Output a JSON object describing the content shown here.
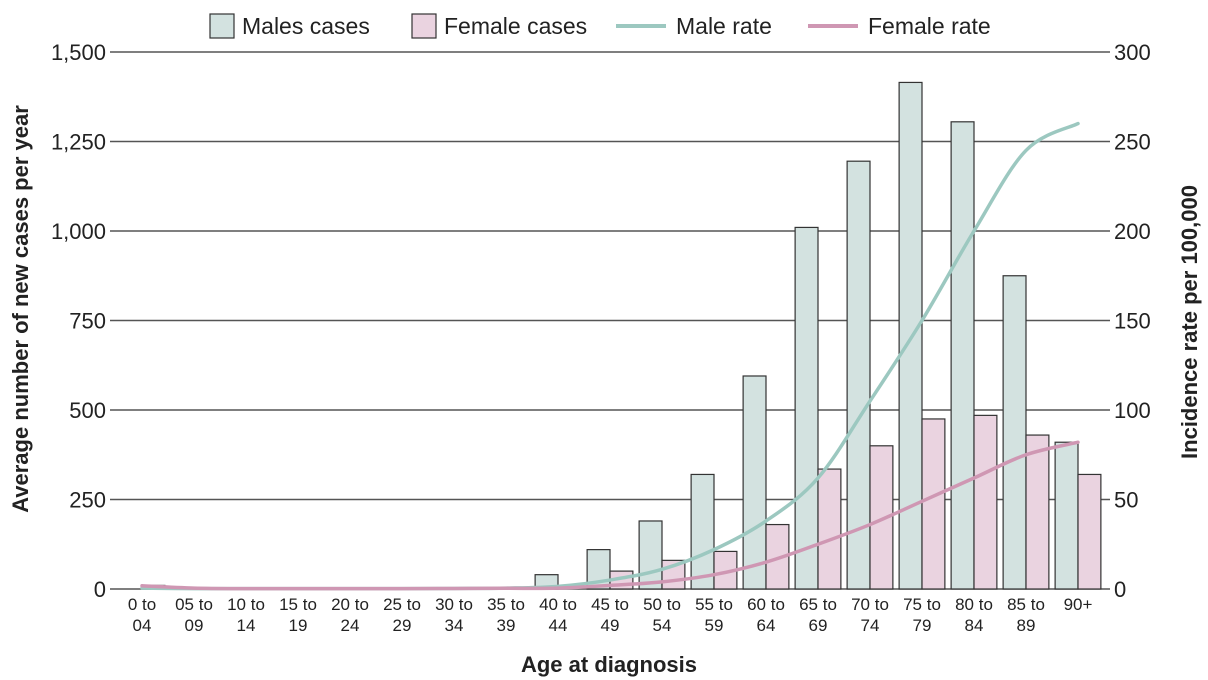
{
  "chart_data": {
    "type": "bar",
    "title": "",
    "xlabel": "Age at diagnosis",
    "ylabel": "Average number of new cases per year",
    "y2label": "Incidence rate per 100,000",
    "ylim": [
      0,
      1500
    ],
    "y2lim": [
      0,
      300
    ],
    "yticks": [
      "0",
      "250",
      "500",
      "750",
      "1,000",
      "1,250",
      "1,500"
    ],
    "y2ticks": [
      "0",
      "50",
      "100",
      "150",
      "200",
      "250",
      "300"
    ],
    "grid": true,
    "legend_position": "top",
    "categories": [
      [
        "0 to",
        "04"
      ],
      [
        "05 to",
        "09"
      ],
      [
        "10 to",
        "14"
      ],
      [
        "15 to",
        "19"
      ],
      [
        "20 to",
        "24"
      ],
      [
        "25 to",
        "29"
      ],
      [
        "30 to",
        "34"
      ],
      [
        "35 to",
        "39"
      ],
      [
        "40 to",
        "44"
      ],
      [
        "45 to",
        "49"
      ],
      [
        "50 to",
        "54"
      ],
      [
        "55 to",
        "59"
      ],
      [
        "60 to",
        "64"
      ],
      [
        "65 to",
        "69"
      ],
      [
        "70 to",
        "74"
      ],
      [
        "75 to",
        "79"
      ],
      [
        "80 to",
        "84"
      ],
      [
        "85 to",
        "89"
      ],
      [
        "90+",
        ""
      ]
    ],
    "series": [
      {
        "name": "Males cases",
        "kind": "bar",
        "axis": "left",
        "color": "#d3e2e0",
        "values": [
          0,
          0,
          0,
          0,
          0,
          0,
          0,
          0,
          40,
          110,
          190,
          320,
          595,
          1010,
          1195,
          1415,
          1305,
          875,
          410
        ]
      },
      {
        "name": "Female cases",
        "kind": "bar",
        "axis": "left",
        "color": "#ead3e0",
        "values": [
          10,
          0,
          0,
          0,
          0,
          0,
          0,
          0,
          0,
          50,
          80,
          105,
          180,
          335,
          400,
          475,
          485,
          430,
          320
        ]
      },
      {
        "name": "Male rate",
        "kind": "line",
        "axis": "right",
        "color": "#9cc8c0",
        "values": [
          0.5,
          0.2,
          0.2,
          0.2,
          0.2,
          0.2,
          0.3,
          0.5,
          1.5,
          5,
          11,
          22,
          38,
          62,
          105,
          150,
          200,
          245,
          260
        ]
      },
      {
        "name": "Female rate",
        "kind": "line",
        "axis": "right",
        "color": "#cf97b3",
        "values": [
          1.8,
          0.5,
          0.2,
          0.2,
          0.2,
          0.2,
          0.3,
          0.4,
          0.5,
          2,
          4,
          8,
          15,
          25,
          36,
          49,
          62,
          75,
          82
        ]
      }
    ]
  }
}
